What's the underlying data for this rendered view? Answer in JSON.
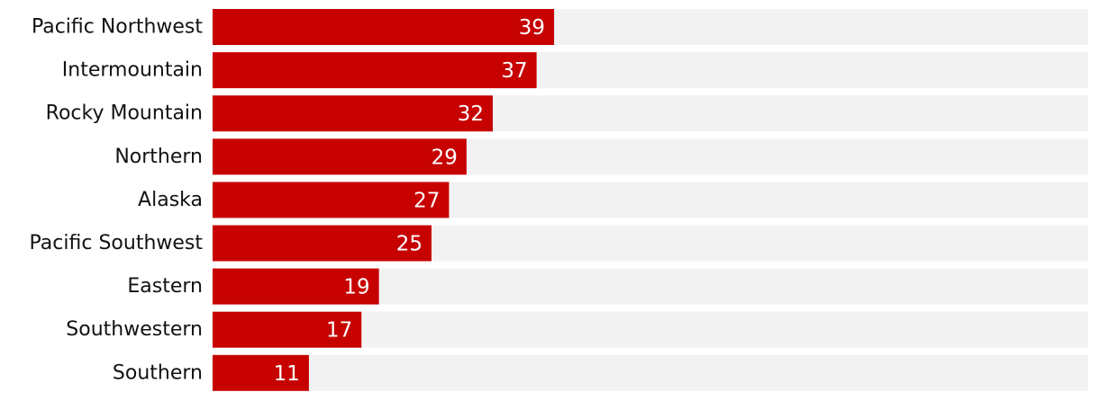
{
  "chart_data": {
    "type": "bar",
    "orientation": "horizontal",
    "categories": [
      "Pacific Northwest",
      "Intermountain",
      "Rocky Mountain",
      "Northern",
      "Alaska",
      "Pacific Southwest",
      "Eastern",
      "Southwestern",
      "Southern"
    ],
    "values": [
      39,
      37,
      32,
      29,
      27,
      25,
      19,
      17,
      11
    ],
    "data_labels": [
      "39",
      "37",
      "32",
      "29",
      "27",
      "25",
      "19",
      "17",
      "11"
    ],
    "xlim": [
      0,
      100
    ],
    "grid": false,
    "legend": "none",
    "bar_color": "#c70000",
    "track_color": "#f2f2f2",
    "label_color": "#121212",
    "value_label_color": "#ffffff"
  }
}
